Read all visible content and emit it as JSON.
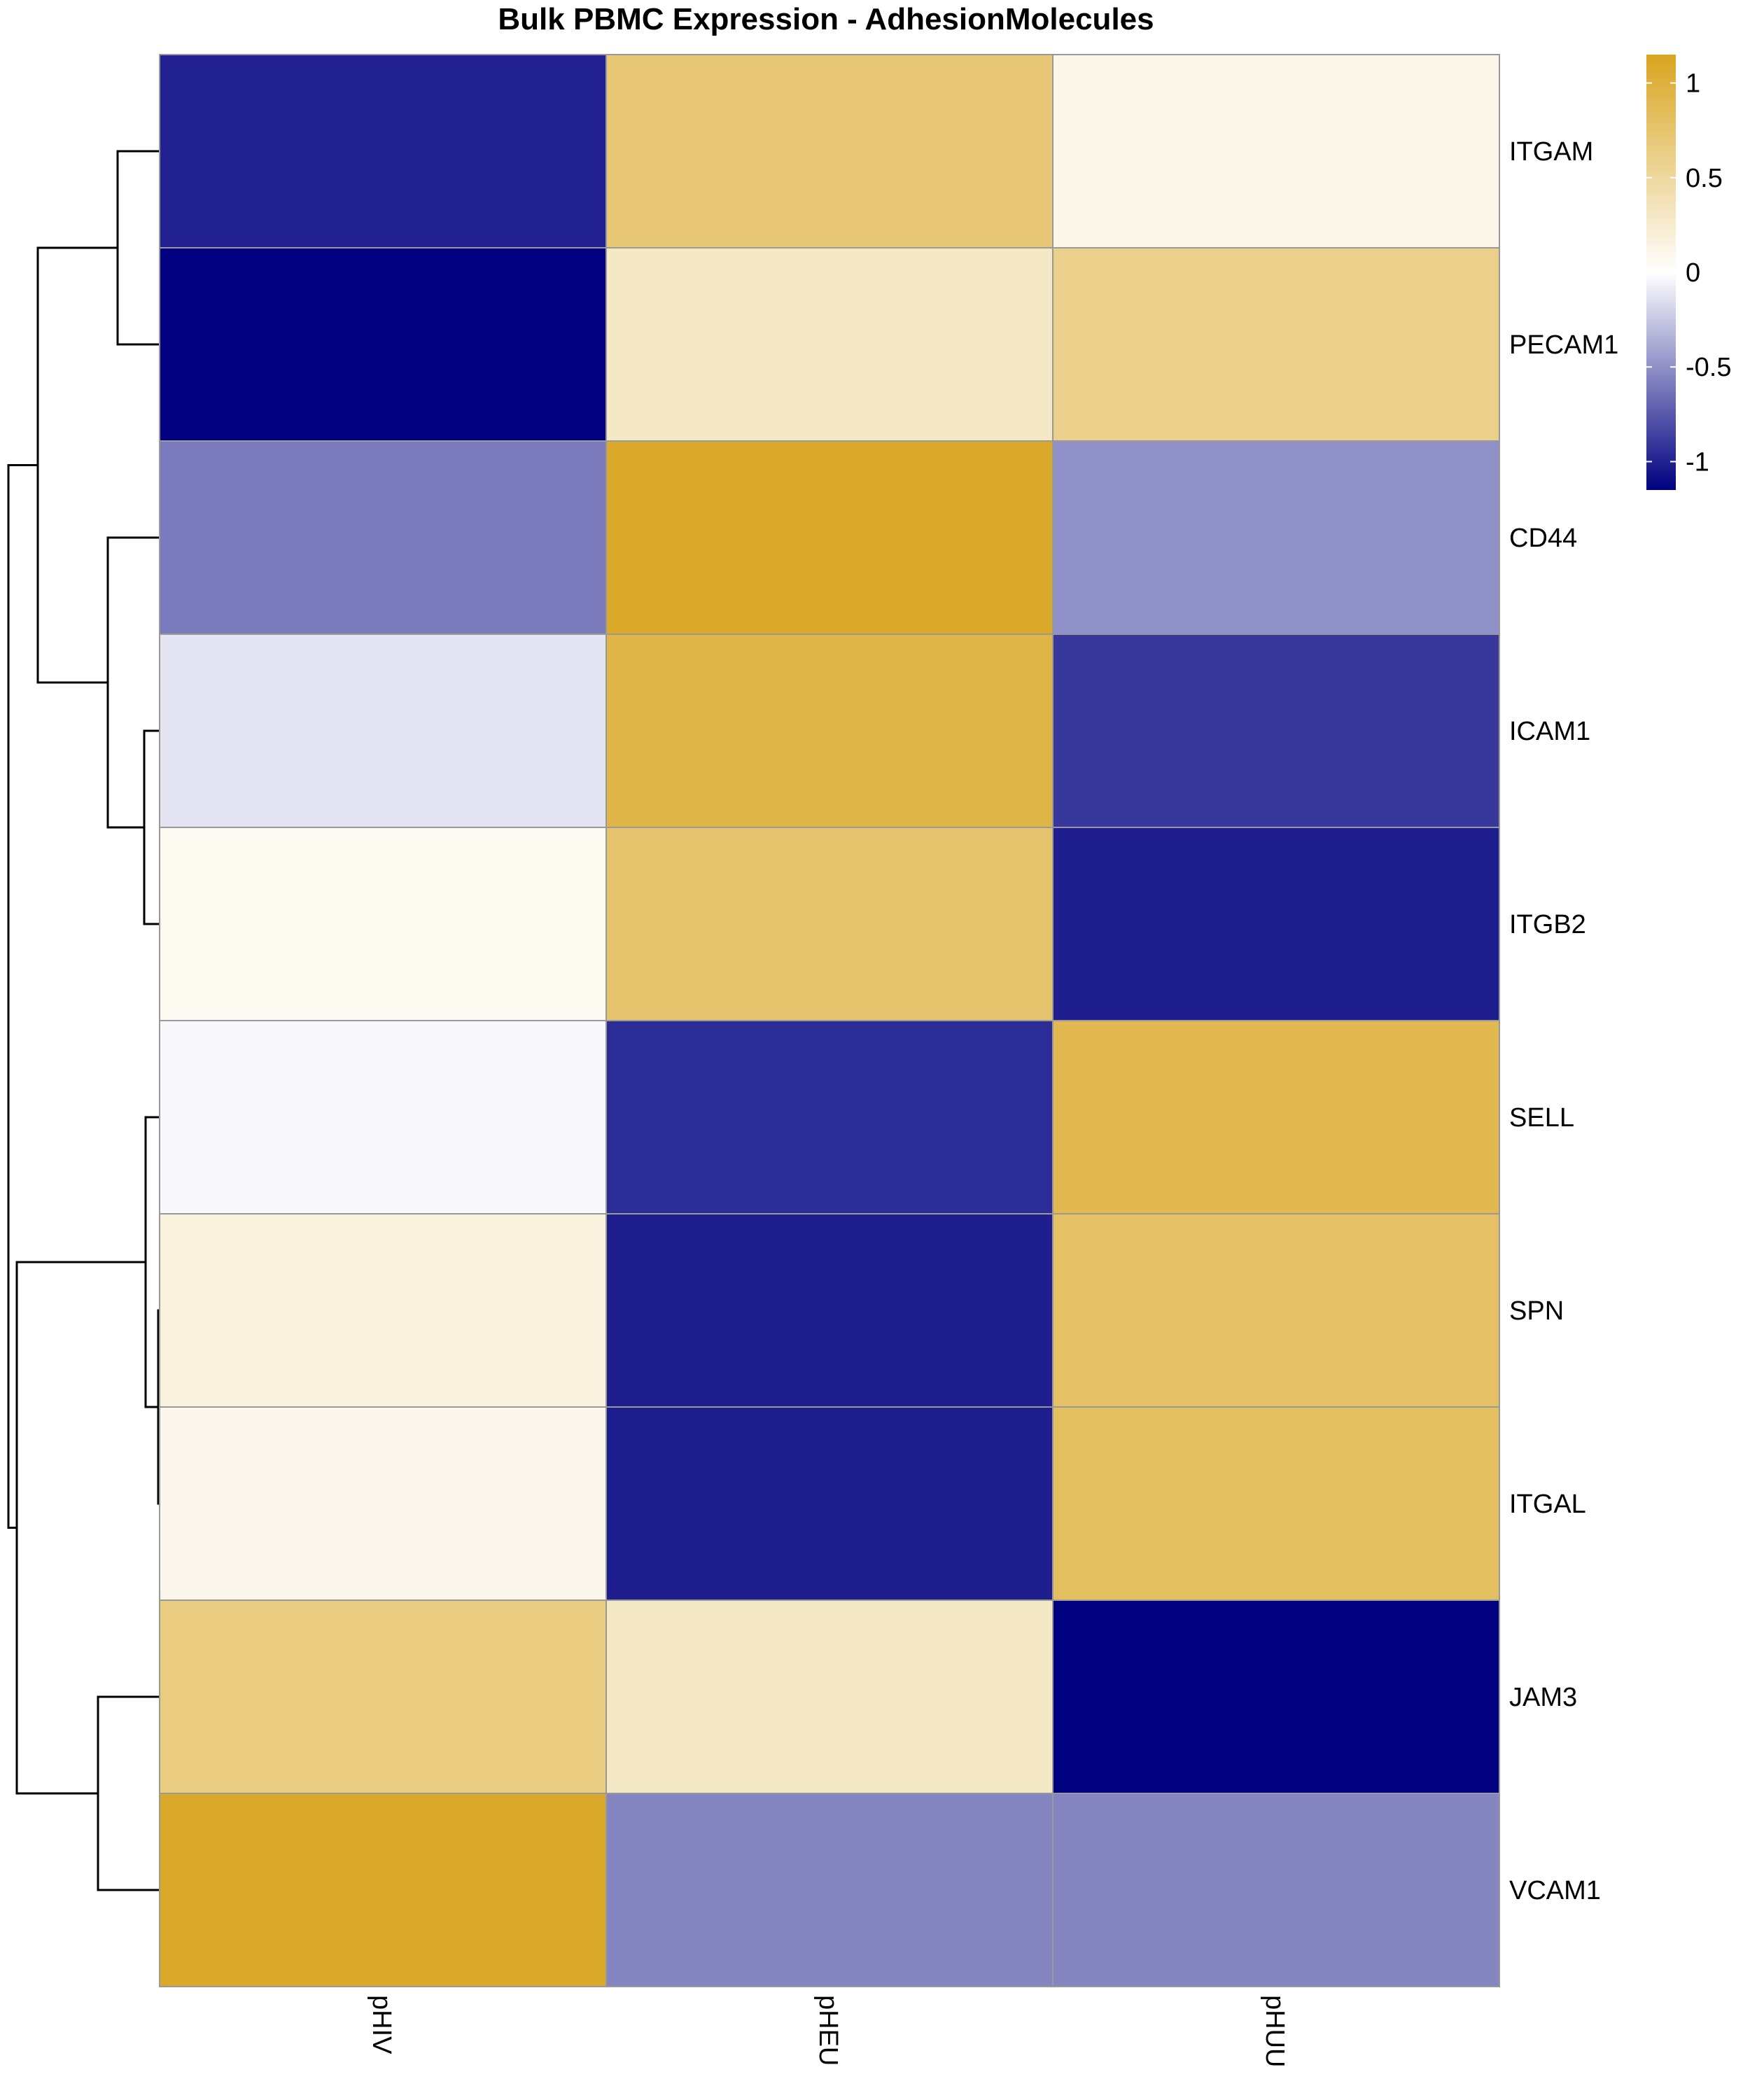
{
  "chart_data": {
    "type": "heatmap",
    "title": "Bulk PBMC Expression - AdhesionMolecules",
    "columns": [
      "pHIV",
      "pHEU",
      "pHUU"
    ],
    "rows": [
      "ITGAM",
      "PECAM1",
      "CD44",
      "ICAM1",
      "ITGB2",
      "SELL",
      "SPN",
      "ITGAL",
      "JAM3",
      "VCAM1"
    ],
    "values": [
      [
        -1.0,
        0.7,
        0.12
      ],
      [
        -1.15,
        0.3,
        0.6
      ],
      [
        -0.6,
        1.1,
        -0.5
      ],
      [
        -0.12,
        0.95,
        -0.9
      ],
      [
        0.07,
        0.75,
        -1.02
      ],
      [
        -0.03,
        -0.95,
        0.9
      ],
      [
        0.17,
        -1.02,
        0.8
      ],
      [
        0.1,
        -1.02,
        0.82
      ],
      [
        0.65,
        0.3,
        -1.15
      ],
      [
        1.1,
        -0.55,
        -0.55
      ]
    ],
    "color_scale": {
      "low": "#000080",
      "mid": "#ffffff",
      "high": "#d9a520",
      "min": -1.15,
      "max": 1.15
    },
    "legend": {
      "ticks": [
        1,
        0.5,
        0,
        -0.5,
        -1
      ],
      "tick_labels": [
        "1",
        "0.5",
        "0",
        "-0.5",
        "-1"
      ],
      "placement": "top-right"
    },
    "row_dendrogram": true,
    "cell_border_color": "#999999"
  }
}
